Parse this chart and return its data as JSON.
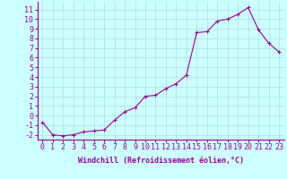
{
  "x": [
    0,
    1,
    2,
    3,
    4,
    5,
    6,
    7,
    8,
    9,
    10,
    11,
    12,
    13,
    14,
    15,
    16,
    17,
    18,
    19,
    20,
    21,
    22,
    23
  ],
  "y": [
    -0.7,
    -2.0,
    -2.1,
    -2.0,
    -1.7,
    -1.6,
    -1.5,
    -0.5,
    0.4,
    0.8,
    2.0,
    2.1,
    2.8,
    3.3,
    4.2,
    8.6,
    8.7,
    9.8,
    10.0,
    10.5,
    11.2,
    8.9,
    7.5,
    6.6
  ],
  "line_color": "#990099",
  "marker": "+",
  "background_color": "#ccffff",
  "grid_color": "#aadddd",
  "xlabel": "Windchill (Refroidissement éolien,°C)",
  "xlabel_fontsize": 6,
  "tick_fontsize": 6,
  "ylim": [
    -2.5,
    11.8
  ],
  "xlim": [
    -0.5,
    23.5
  ],
  "yticks": [
    -2,
    -1,
    0,
    1,
    2,
    3,
    4,
    5,
    6,
    7,
    8,
    9,
    10,
    11
  ],
  "xticks": [
    0,
    1,
    2,
    3,
    4,
    5,
    6,
    7,
    8,
    9,
    10,
    11,
    12,
    13,
    14,
    15,
    16,
    17,
    18,
    19,
    20,
    21,
    22,
    23
  ]
}
